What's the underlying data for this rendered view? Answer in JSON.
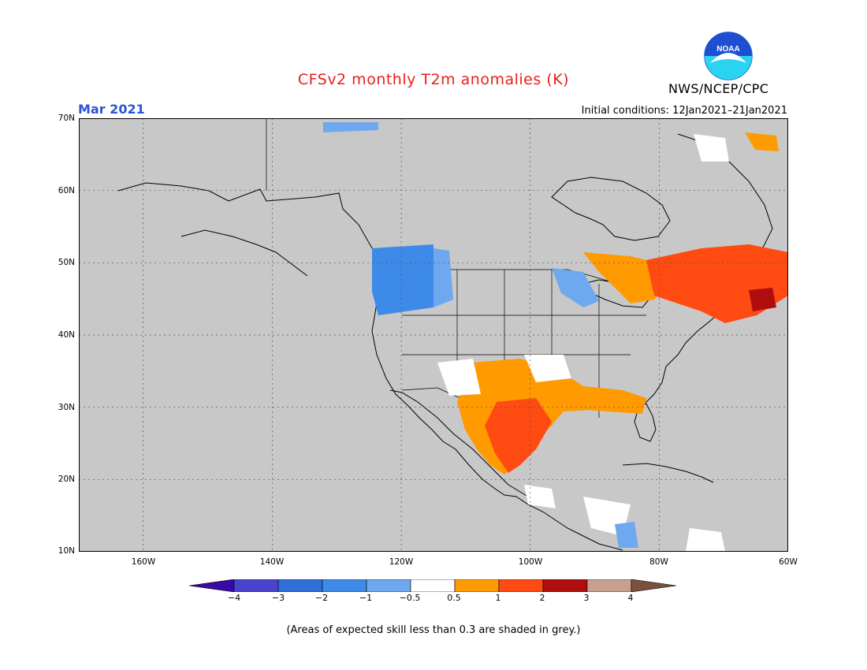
{
  "title": "CFSv2 monthly T2m anomalies (K)",
  "month": "Mar 2021",
  "initial_conditions": "Initial conditions: 12Jan2021–21Jan2021",
  "agency": "NWS/NCEP/CPC",
  "logo_text": "NOAA",
  "lat_labels": [
    "70N",
    "60N",
    "50N",
    "40N",
    "30N",
    "20N",
    "10N"
  ],
  "lon_labels": [
    "160W",
    "140W",
    "120W",
    "100W",
    "80W",
    "60W"
  ],
  "colorbar_labels": [
    "−4",
    "−3",
    "−2",
    "−1",
    "−0.5",
    "0.5",
    "1",
    "2",
    "3",
    "4"
  ],
  "footnote": "(Areas of expected skill less than 0.3 are shaded in grey.)",
  "colors": {
    "title": "#e8201c",
    "month": "#2a55d8",
    "land_grey": "#c8c8c8",
    "cb": [
      "#3a0aa8",
      "#4a44cc",
      "#2e6fd8",
      "#3e8ae8",
      "#6ea8ee",
      "#ffffff",
      "#ff9a00",
      "#ff4a12",
      "#b00e0e",
      "#c8a090",
      "#7a5040"
    ]
  }
}
